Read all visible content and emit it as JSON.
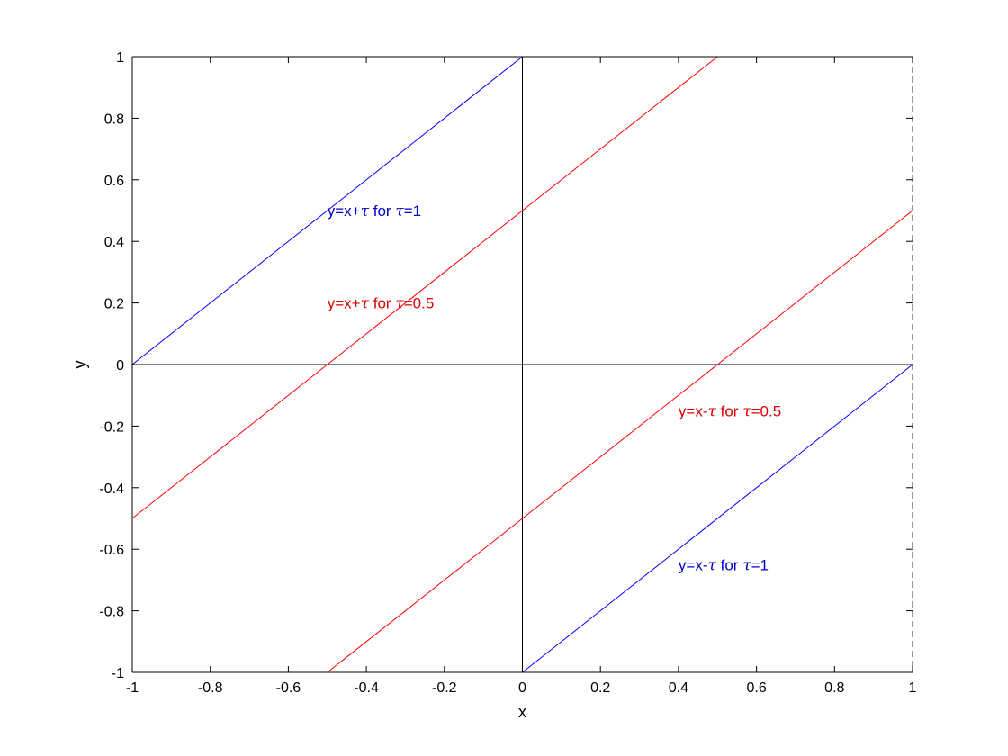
{
  "chart_data": {
    "type": "line",
    "title": "",
    "xlabel": "x",
    "ylabel": "y",
    "xlim": [
      -1,
      1
    ],
    "ylim": [
      -1,
      1
    ],
    "grid": false,
    "xticks": [
      -1,
      -0.8,
      -0.6,
      -0.4,
      -0.2,
      0,
      0.2,
      0.4,
      0.6,
      0.8,
      1
    ],
    "yticks": [
      -1,
      -0.8,
      -0.6,
      -0.4,
      -0.2,
      0,
      0.2,
      0.4,
      0.6,
      0.8,
      1
    ],
    "reference_lines": [
      {
        "orientation": "horizontal",
        "value": 0,
        "color": "#000000"
      },
      {
        "orientation": "vertical",
        "value": 0,
        "color": "#000000"
      }
    ],
    "series": [
      {
        "color": "#0000ff",
        "points": [
          [
            -1,
            0
          ],
          [
            0,
            1
          ]
        ]
      },
      {
        "color": "#ff0000",
        "points": [
          [
            -1,
            -0.5
          ],
          [
            0.5,
            1
          ]
        ]
      },
      {
        "color": "#ff0000",
        "points": [
          [
            -0.5,
            -1
          ],
          [
            1,
            0.5
          ]
        ]
      },
      {
        "color": "#0000ff",
        "points": [
          [
            0,
            -1
          ],
          [
            1,
            0
          ]
        ]
      }
    ],
    "annotations": [
      {
        "pre": "y=x+",
        "sym": "τ",
        "mid": " for ",
        "sym2": "τ",
        "post": "=1",
        "x": -0.5,
        "y": 0.5,
        "color": "#0000c8"
      },
      {
        "pre": "y=x+",
        "sym": "τ",
        "mid": " for ",
        "sym2": "τ",
        "post": "=0.5",
        "x": -0.5,
        "y": 0.2,
        "color": "#dc0000"
      },
      {
        "pre": "y=x-",
        "sym": "τ",
        "mid": " for ",
        "sym2": "τ",
        "post": "=0.5",
        "x": 0.4,
        "y": -0.15,
        "color": "#dc0000"
      },
      {
        "pre": "y=x-",
        "sym": "τ",
        "mid": " for ",
        "sym2": "τ",
        "post": "=1",
        "x": 0.4,
        "y": -0.65,
        "color": "#0000c8"
      }
    ]
  }
}
